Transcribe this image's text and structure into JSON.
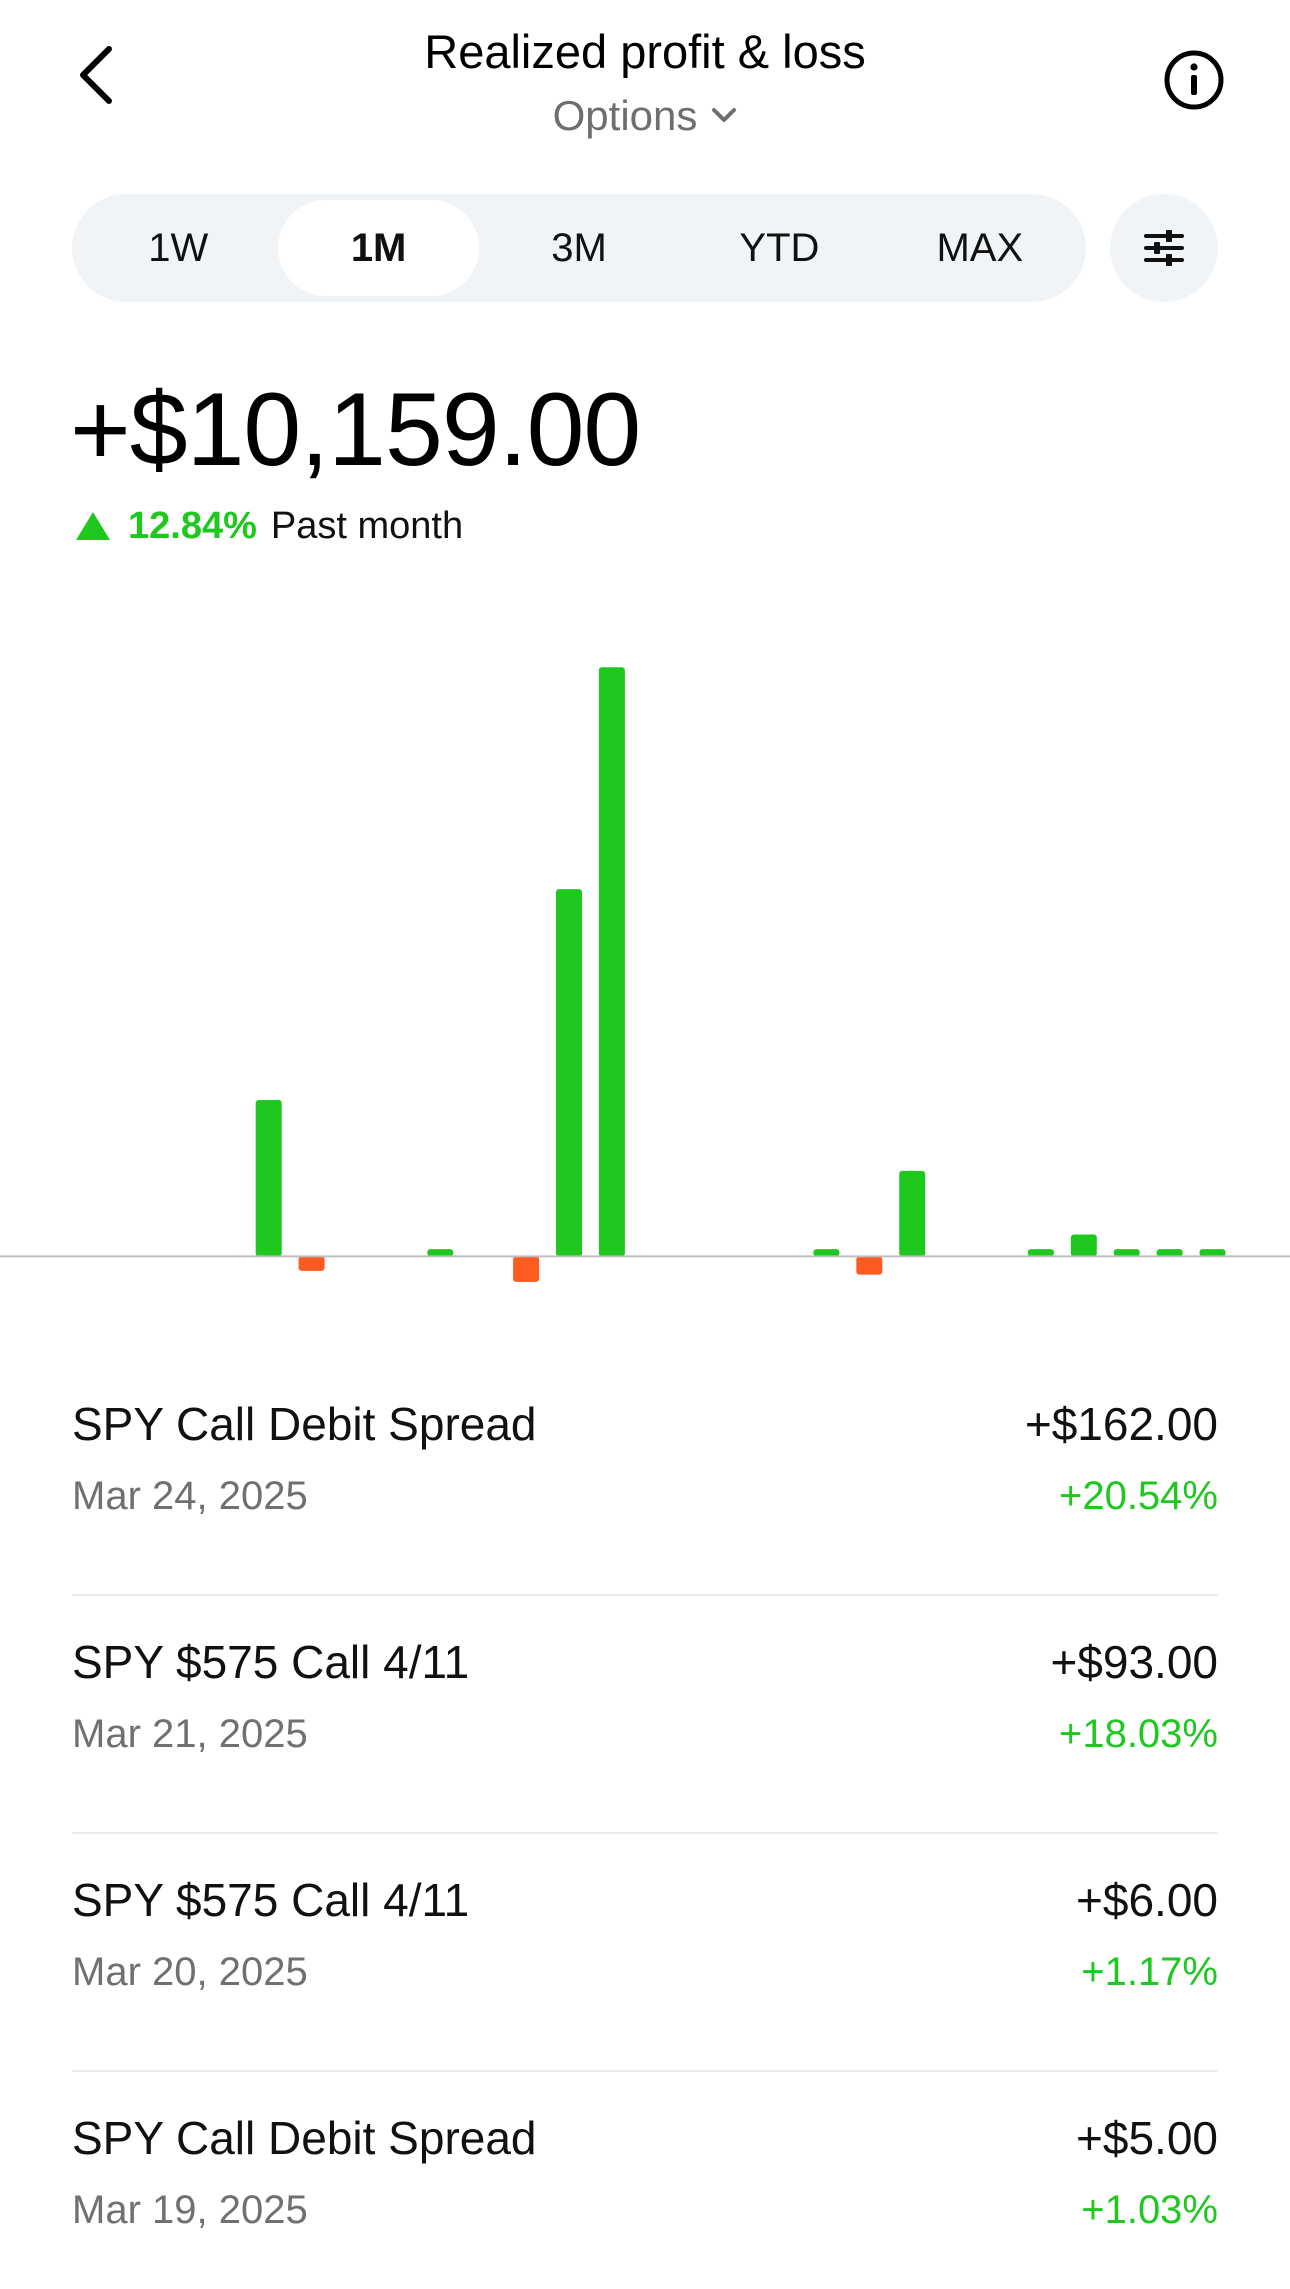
{
  "header": {
    "title": "Realized profit & loss",
    "subtitle": "Options",
    "back_icon": "chevron-left-icon",
    "info_icon": "info-icon",
    "dropdown_icon": "chevron-down-icon"
  },
  "tabs": [
    {
      "label": "1W",
      "active": false
    },
    {
      "label": "1M",
      "active": true
    },
    {
      "label": "3M",
      "active": false
    },
    {
      "label": "YTD",
      "active": false
    },
    {
      "label": "MAX",
      "active": false
    }
  ],
  "filter_icon": "sliders-icon",
  "summary": {
    "amount": "+$10,159.00",
    "change_pct": "12.84%",
    "period": "Past month",
    "trend_icon": "triangle-up-icon"
  },
  "colors": {
    "gain": "#1ec81e",
    "loss": "#ff5a1f",
    "baseline": "#bdbdbd"
  },
  "chart_data": {
    "type": "bar",
    "values": [
      0,
      0,
      0,
      860,
      -80,
      0,
      0,
      40,
      0,
      -140,
      2020,
      3240,
      0,
      0,
      0,
      0,
      40,
      -100,
      470,
      0,
      0,
      40,
      120,
      40,
      40,
      40,
      0,
      0,
      100
    ],
    "ylim": [
      -350,
      3500
    ]
  },
  "transactions": [
    {
      "name": "SPY Call Debit Spread",
      "date": "Mar 24, 2025",
      "amount": "+$162.00",
      "return": "+20.54%"
    },
    {
      "name": "SPY $575 Call 4/11",
      "date": "Mar 21, 2025",
      "amount": "+$93.00",
      "return": "+18.03%"
    },
    {
      "name": "SPY $575 Call 4/11",
      "date": "Mar 20, 2025",
      "amount": "+$6.00",
      "return": "+1.17%"
    },
    {
      "name": "SPY Call Debit Spread",
      "date": "Mar 19, 2025",
      "amount": "+$5.00",
      "return": "+1.03%"
    }
  ]
}
